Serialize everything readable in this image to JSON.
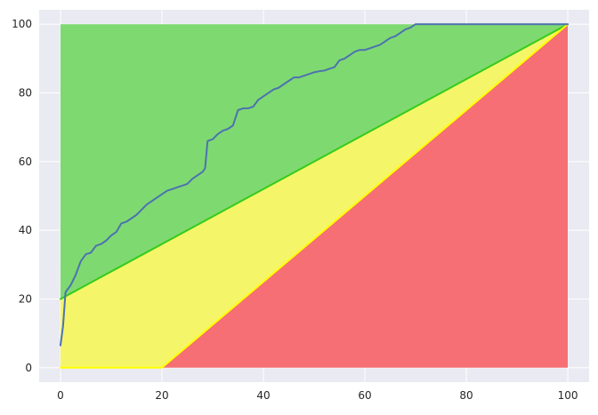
{
  "chart_data": {
    "type": "area",
    "title": "",
    "xlabel": "",
    "ylabel": "",
    "xlim": [
      -4.2,
      104.2
    ],
    "ylim": [
      -4.2,
      104.2
    ],
    "grid": true,
    "legend": "none",
    "xticks": [
      "0",
      "20",
      "40",
      "60",
      "80",
      "100"
    ],
    "yticks": [
      "0",
      "20",
      "40",
      "60",
      "80",
      "100"
    ],
    "xtick_values": [
      0,
      20,
      40,
      60,
      80,
      100
    ],
    "ytick_values": [
      0,
      20,
      40,
      60,
      80,
      100
    ],
    "background_color": "#eaeaf2",
    "grid_color": "#ffffff",
    "regions": [
      {
        "color": "#7fd971",
        "polygon": [
          [
            0,
            100
          ],
          [
            100,
            100
          ],
          [
            100,
            100
          ],
          [
            0,
            20
          ]
        ]
      },
      {
        "color": "#f5f56a",
        "polygon": [
          [
            0,
            20
          ],
          [
            100,
            100
          ],
          [
            20,
            0
          ],
          [
            0,
            0
          ]
        ]
      },
      {
        "color": "#f56f74",
        "polygon": [
          [
            20,
            0
          ],
          [
            100,
            0
          ],
          [
            100,
            100
          ]
        ]
      }
    ],
    "lines": [
      {
        "color": "#33cc1a",
        "width": 2,
        "points": [
          [
            0,
            20
          ],
          [
            100,
            100
          ]
        ]
      },
      {
        "color": "#ffff00",
        "width": 2,
        "points": [
          [
            0,
            0
          ],
          [
            20,
            0
          ],
          [
            100,
            100
          ]
        ]
      },
      {
        "color": "#4c72b0",
        "width": 2,
        "points": [
          [
            0,
            6.5
          ],
          [
            0.5,
            12
          ],
          [
            1,
            22
          ],
          [
            2,
            24
          ],
          [
            3,
            27
          ],
          [
            4,
            31
          ],
          [
            5,
            33
          ],
          [
            6,
            33.5
          ],
          [
            7,
            35.5
          ],
          [
            8,
            36
          ],
          [
            9,
            37
          ],
          [
            10,
            38.5
          ],
          [
            11,
            39.5
          ],
          [
            12,
            42
          ],
          [
            13,
            42.5
          ],
          [
            14,
            43.5
          ],
          [
            15,
            44.5
          ],
          [
            16,
            46
          ],
          [
            17,
            47.5
          ],
          [
            18,
            48.5
          ],
          [
            19,
            49.5
          ],
          [
            20,
            50.5
          ],
          [
            21,
            51.5
          ],
          [
            22,
            52
          ],
          [
            23,
            52.5
          ],
          [
            24,
            53
          ],
          [
            25,
            53.5
          ],
          [
            26,
            55
          ],
          [
            27,
            56
          ],
          [
            28,
            57
          ],
          [
            28.5,
            58
          ],
          [
            29,
            66
          ],
          [
            30,
            66.5
          ],
          [
            31,
            68
          ],
          [
            32,
            69
          ],
          [
            33,
            69.5
          ],
          [
            34,
            70.5
          ],
          [
            35,
            75
          ],
          [
            36,
            75.5
          ],
          [
            37,
            75.5
          ],
          [
            38,
            76
          ],
          [
            39,
            78
          ],
          [
            40,
            79
          ],
          [
            41,
            80
          ],
          [
            42,
            81
          ],
          [
            43,
            81.5
          ],
          [
            44,
            82.5
          ],
          [
            45,
            83.5
          ],
          [
            46,
            84.5
          ],
          [
            47,
            84.5
          ],
          [
            48,
            85
          ],
          [
            49,
            85.5
          ],
          [
            50,
            86
          ],
          [
            51,
            86.3
          ],
          [
            52,
            86.5
          ],
          [
            53,
            87
          ],
          [
            54,
            87.5
          ],
          [
            55,
            89.5
          ],
          [
            56,
            90
          ],
          [
            57,
            91
          ],
          [
            58,
            92
          ],
          [
            59,
            92.5
          ],
          [
            60,
            92.5
          ],
          [
            61,
            93
          ],
          [
            62,
            93.5
          ],
          [
            63,
            94
          ],
          [
            64,
            95
          ],
          [
            65,
            96
          ],
          [
            66,
            96.5
          ],
          [
            67,
            97.5
          ],
          [
            68,
            98.5
          ],
          [
            69,
            99
          ],
          [
            70,
            100
          ],
          [
            100,
            100
          ]
        ]
      }
    ]
  }
}
